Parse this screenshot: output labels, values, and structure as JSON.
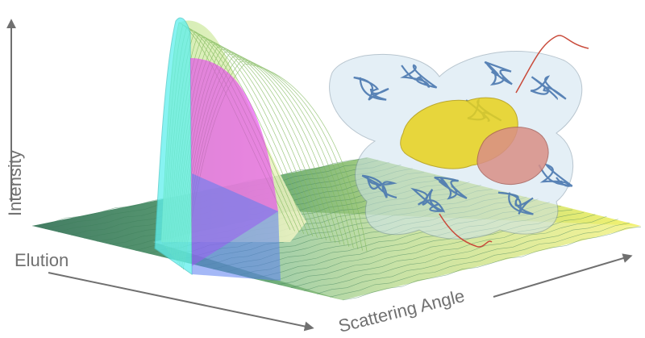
{
  "axes": {
    "intensity": "Intensity",
    "elution": "Elution",
    "scattering_angle": "Scattering Angle"
  },
  "colors": {
    "axis_gray": "#707070",
    "surface_green": "#2e8a55",
    "surface_yellow": "#f2f05a",
    "peak_cyan": "#5ff0ee",
    "peak_magenta": "#e63cf0",
    "protein_blue": "#4a78b0",
    "protein_yellow": "#e8d21c",
    "protein_pink": "#d98f86",
    "envelope": "#cfe3ef"
  },
  "icons": [
    "protein-structure-illustration"
  ]
}
